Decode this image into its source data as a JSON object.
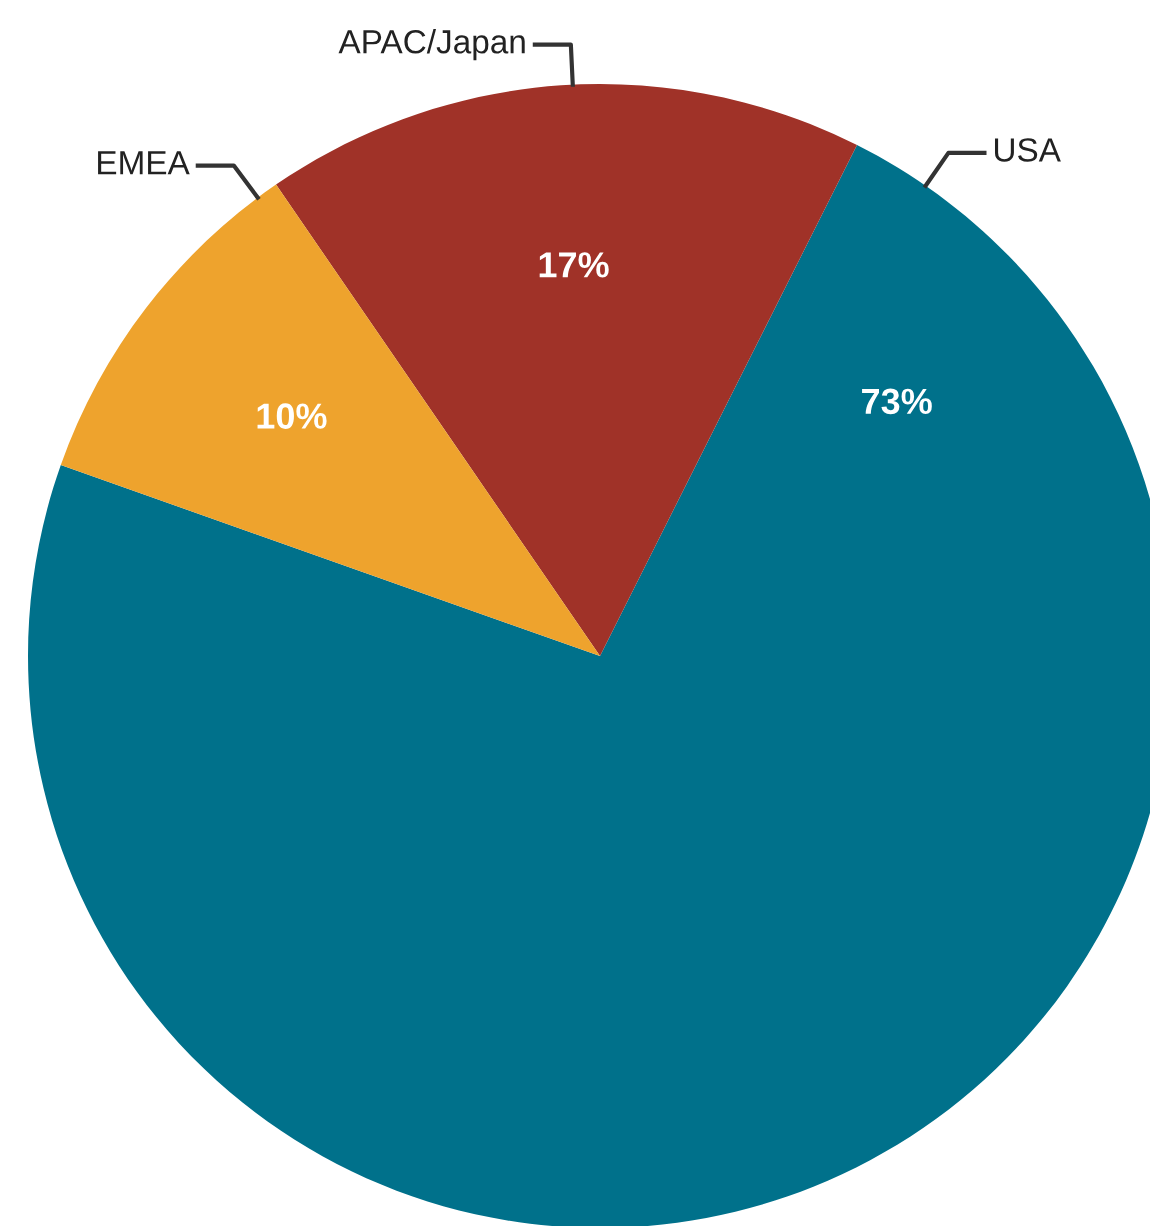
{
  "chart_data": {
    "type": "pie",
    "categories": [
      "USA",
      "APAC/Japan",
      "EMEA"
    ],
    "values": [
      73,
      17,
      10
    ],
    "colors": [
      "#00718b",
      "#a03228",
      "#eea32d"
    ],
    "value_labels": [
      "73%",
      "17%",
      "10%"
    ]
  }
}
